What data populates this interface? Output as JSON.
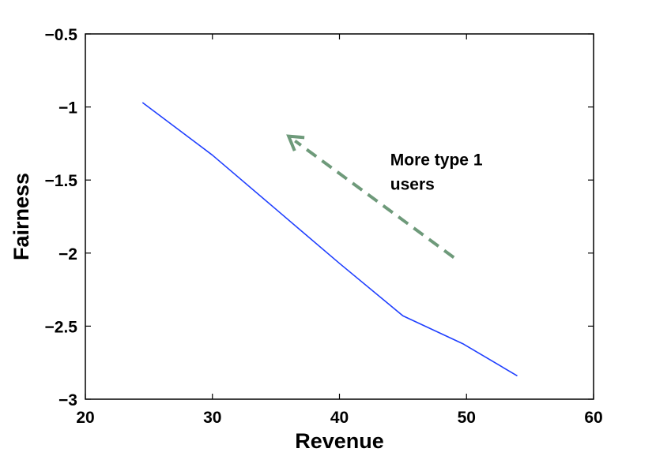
{
  "chart_data": {
    "type": "line",
    "xlabel": "Revenue",
    "ylabel": "Fairness",
    "xlim": [
      20,
      60
    ],
    "ylim": [
      -3,
      -0.5
    ],
    "xticks": [
      20,
      30,
      40,
      50,
      60
    ],
    "xtick_labels": [
      "20",
      "30",
      "40",
      "50",
      "60"
    ],
    "yticks": [
      -0.5,
      -1,
      -1.5,
      -2,
      -2.5,
      -3
    ],
    "ytick_labels": [
      "−0.5",
      "−1",
      "−1.5",
      "−2",
      "−2.5",
      "−3"
    ],
    "grid": false,
    "series": [
      {
        "color": "#1f3fff",
        "x": [
          24.5,
          30,
          35,
          40,
          45,
          49.7,
          54
        ],
        "y": [
          -0.97,
          -1.33,
          -1.7,
          -2.07,
          -2.43,
          -2.62,
          -2.84
        ]
      }
    ],
    "annotations": [
      {
        "type": "arrow",
        "style": "dashed",
        "color": "#6e9a7a",
        "from": [
          49,
          -2.03
        ],
        "to": [
          36,
          -1.2
        ]
      },
      {
        "type": "text",
        "lines": [
          "More type 1",
          "users"
        ],
        "x": 44,
        "y": -1.4
      }
    ]
  }
}
